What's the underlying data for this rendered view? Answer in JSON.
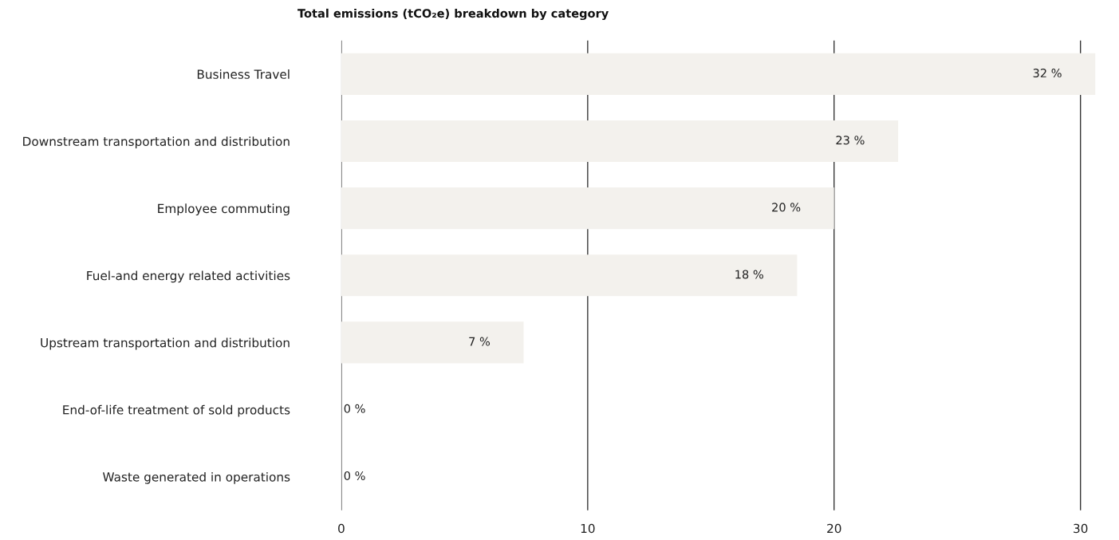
{
  "chart_data": {
    "type": "bar",
    "orientation": "horizontal",
    "title": "Total emissions (tCO₂e) breakdown by category",
    "categories": [
      "Business Travel",
      "Downstream transportation and distribution",
      "Employee commuting",
      "Fuel-and energy related activities",
      "Upstream transportation and distribution",
      "End-of-life treatment of sold products",
      "Waste generated in operations"
    ],
    "values": [
      30.6,
      22.6,
      20.0,
      18.5,
      7.4,
      0,
      0
    ],
    "annotations": [
      {
        "text": "32 %",
        "x": 30.6,
        "y": "Business Travel"
      },
      {
        "text": "23 %",
        "x": 22.6,
        "y": "Downstream transportation and distribution"
      },
      {
        "text": "20 %",
        "x": 20.0,
        "y": "Employee commuting"
      },
      {
        "text": "18 %",
        "x": 18.5,
        "y": "Fuel-and energy related activities"
      },
      {
        "text": "7 %",
        "x": 7.4,
        "y": "Upstream transportation and distribution"
      },
      {
        "text": "0 %",
        "x": 0,
        "y": "End-of-life treatment of sold products"
      },
      {
        "text": "0 %",
        "x": 0,
        "y": "Waste generated in operations"
      }
    ],
    "color": "#f3f1ed",
    "xlim": [
      0,
      30.7
    ],
    "xticks": [
      0,
      10,
      20,
      30
    ],
    "grid": "x"
  }
}
